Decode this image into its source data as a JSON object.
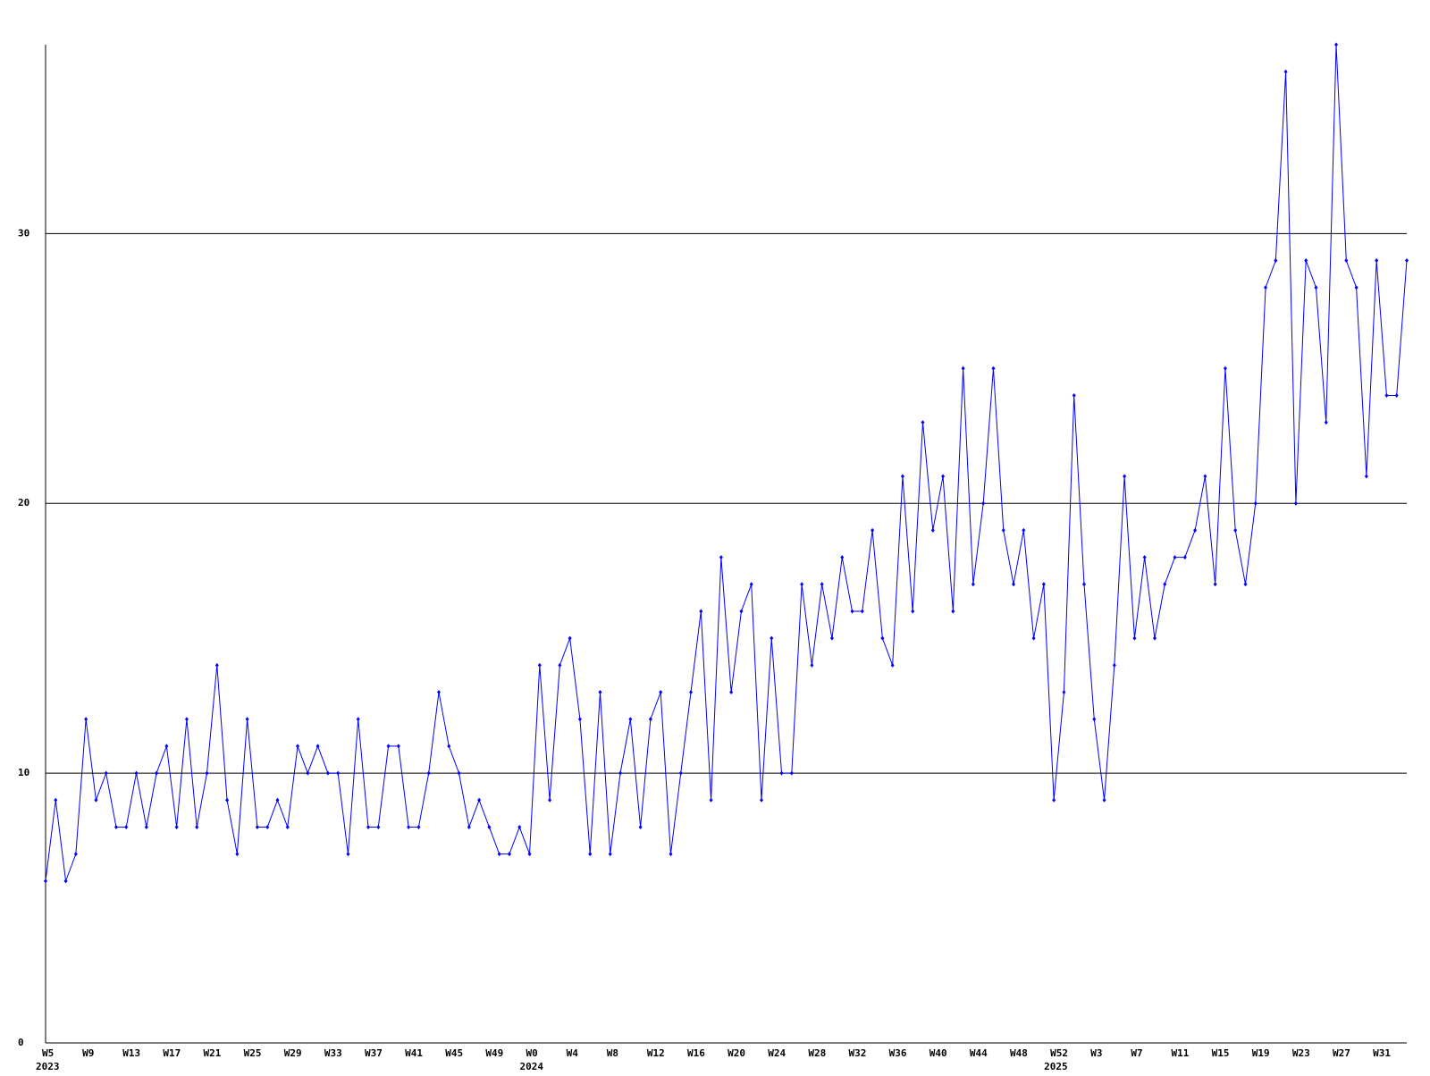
{
  "chart_data": {
    "type": "line",
    "categories": [
      "W5",
      null,
      null,
      null,
      "W9",
      null,
      null,
      null,
      "W13",
      null,
      null,
      null,
      "W17",
      null,
      null,
      null,
      "W21",
      null,
      null,
      null,
      "W25",
      null,
      null,
      null,
      "W29",
      null,
      null,
      null,
      "W33",
      null,
      null,
      null,
      "W37",
      null,
      null,
      null,
      "W41",
      null,
      null,
      null,
      "W45",
      null,
      null,
      null,
      "W49",
      null,
      null,
      null,
      "W0",
      null,
      null,
      null,
      "W4",
      null,
      null,
      null,
      "W8",
      null,
      null,
      null,
      "W12",
      null,
      null,
      null,
      "W16",
      null,
      null,
      null,
      "W20",
      null,
      null,
      null,
      "W24",
      null,
      null,
      null,
      "W28",
      null,
      null,
      null,
      "W32",
      null,
      null,
      null,
      "W36",
      null,
      null,
      null,
      "W40",
      null,
      null,
      null,
      "W44",
      null,
      null,
      null,
      "W48",
      null,
      null,
      null,
      "W52",
      null,
      null,
      null,
      "W3",
      null,
      null,
      null,
      "W7",
      null,
      null,
      null,
      "W11",
      null,
      null,
      null,
      "W15",
      null,
      null,
      null,
      "W19",
      null,
      null,
      null,
      "W23",
      null,
      null,
      null,
      "W27",
      null,
      null,
      null,
      "W31",
      null,
      null,
      null
    ],
    "year_labels": [
      "2023",
      null,
      null,
      null,
      null,
      null,
      null,
      null,
      null,
      null,
      null,
      null,
      null,
      null,
      null,
      null,
      null,
      null,
      null,
      null,
      null,
      null,
      null,
      null,
      null,
      null,
      null,
      null,
      null,
      null,
      null,
      null,
      null,
      null,
      null,
      null,
      null,
      null,
      null,
      null,
      null,
      null,
      null,
      null,
      null,
      null,
      null,
      null,
      "2024",
      null,
      null,
      null,
      null,
      null,
      null,
      null,
      null,
      null,
      null,
      null,
      null,
      null,
      null,
      null,
      null,
      null,
      null,
      null,
      null,
      null,
      null,
      null,
      null,
      null,
      null,
      null,
      null,
      null,
      null,
      null,
      null,
      null,
      null,
      null,
      null,
      null,
      null,
      null,
      null,
      null,
      null,
      null,
      null,
      null,
      null,
      null,
      null,
      null,
      null,
      null,
      "2025",
      null,
      null,
      null,
      null,
      null,
      null,
      null,
      null,
      null,
      null,
      null,
      null,
      null,
      null,
      null,
      null,
      null,
      null,
      null,
      null,
      null,
      null,
      null,
      null,
      null,
      null,
      null,
      null,
      null,
      null,
      null,
      null,
      null,
      null,
      null
    ],
    "series": [
      {
        "color": "#0000ff",
        "values": [
          6,
          9,
          6,
          7,
          12,
          9,
          10,
          8,
          8,
          10,
          8,
          10,
          11,
          8,
          12,
          8,
          10,
          14,
          9,
          7,
          12,
          8,
          8,
          9,
          8,
          11,
          10,
          11,
          10,
          10,
          7,
          12,
          8,
          8,
          11,
          11,
          8,
          8,
          10,
          13,
          11,
          10,
          8,
          9,
          8,
          7,
          7,
          8,
          7,
          14,
          9,
          14,
          15,
          12,
          7,
          13,
          7,
          10,
          12,
          8,
          12,
          13,
          7,
          10,
          13,
          16,
          9,
          18,
          13,
          16,
          17,
          9,
          15,
          10,
          10,
          17,
          14,
          17,
          15,
          18,
          16,
          16,
          19,
          15,
          14,
          21,
          16,
          23,
          19,
          21,
          16,
          25,
          17,
          20,
          25,
          19,
          17,
          19,
          15,
          17,
          9,
          13,
          24,
          17,
          12,
          9,
          14,
          21,
          15,
          18,
          15,
          17,
          18,
          18,
          19,
          21,
          17,
          25,
          19,
          17,
          20,
          28,
          29,
          36,
          20,
          29,
          28,
          23,
          37,
          29,
          28,
          21,
          29,
          24,
          24,
          29
        ]
      }
    ],
    "ylim": [
      0,
      37
    ],
    "yticks": [
      0,
      10,
      20,
      30
    ],
    "grid": true
  }
}
